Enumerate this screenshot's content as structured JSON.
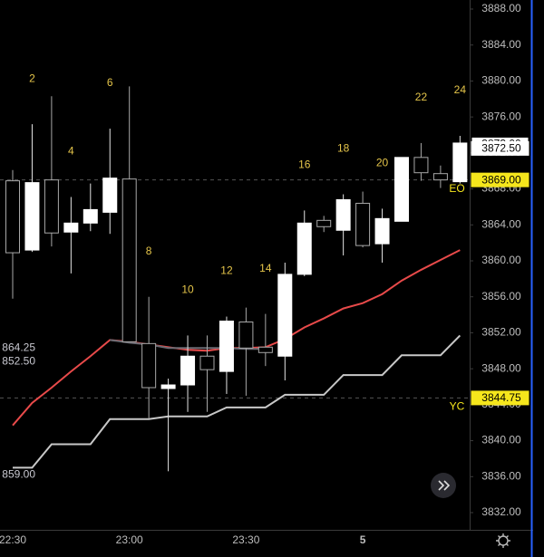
{
  "chart_data": {
    "type": "candlestick",
    "categories": [
      "22:30",
      null,
      null,
      null,
      null,
      null,
      "23:00",
      null,
      null,
      null,
      null,
      null,
      "23:30",
      null,
      null,
      null,
      null,
      null,
      "5",
      null,
      null,
      null,
      null,
      null
    ],
    "open": [
      3868.9,
      3861.2,
      3869.0,
      3863.2,
      3864.2,
      3865.4,
      3869.1,
      3850.8,
      3845.8,
      3846.2,
      3849.4,
      3847.7,
      3853.2,
      3850.4,
      3849.4,
      3858.5,
      3864.5,
      3863.4,
      3866.4,
      3861.9,
      3864.4,
      3871.5,
      3869.7,
      3868.8
    ],
    "high": [
      3870.1,
      3875.2,
      3878.3,
      3867.1,
      3868.6,
      3874.7,
      3879.4,
      3856.0,
      3846.9,
      3851.7,
      3851.7,
      3853.8,
      3854.8,
      3854.1,
      3859.8,
      3865.6,
      3865.0,
      3867.4,
      3867.7,
      3865.8,
      3871.5,
      3873.1,
      3870.6,
      3873.9
    ],
    "low": [
      3855.8,
      3861.0,
      3861.6,
      3858.6,
      3863.3,
      3863.0,
      3851.0,
      3842.5,
      3836.6,
      3843.2,
      3843.2,
      3845.2,
      3845.0,
      3848.3,
      3846.7,
      3858.3,
      3863.2,
      3860.6,
      3861.5,
      3859.8,
      3864.4,
      3868.9,
      3868.1,
      3868.6
    ],
    "close": [
      3860.9,
      3868.7,
      3863.1,
      3864.2,
      3865.7,
      3869.2,
      3851.0,
      3845.9,
      3846.2,
      3849.4,
      3847.9,
      3853.3,
      3850.3,
      3849.8,
      3858.5,
      3864.2,
      3863.8,
      3866.8,
      3861.7,
      3864.7,
      3871.5,
      3869.8,
      3869.0,
      3873.1
    ],
    "candle_labels": [
      null,
      2,
      null,
      4,
      null,
      6,
      null,
      8,
      null,
      10,
      null,
      12,
      null,
      14,
      null,
      16,
      null,
      18,
      null,
      20,
      null,
      22,
      null,
      24
    ],
    "series": [
      {
        "color": "#e84a4a",
        "values": [
          3841.7,
          3844.2,
          3845.9,
          3847.7,
          3849.4,
          3851.2,
          3851.0,
          3850.7,
          3850.4,
          3850.1,
          3850.0,
          3850.3,
          3850.3,
          3850.4,
          3851.3,
          3852.6,
          3853.6,
          3854.7,
          3855.3,
          3856.3,
          3857.8,
          3859.0,
          3860.1,
          3861.2
        ]
      },
      {
        "color": "#6b6b73",
        "values": [
          null,
          null,
          null,
          null,
          null,
          3851.2,
          3850.9,
          3850.7,
          3850.3,
          3850.3,
          3850.3,
          3850.3,
          3850.2,
          3850.2,
          null,
          null,
          null,
          null,
          null,
          null,
          null,
          null,
          null,
          null
        ]
      },
      {
        "color": "#c8c8c8",
        "values": [
          3837.0,
          3837.0,
          3839.6,
          3839.6,
          3839.6,
          3842.4,
          3842.4,
          3842.4,
          3842.7,
          3842.7,
          3842.7,
          3843.7,
          3843.7,
          3843.7,
          3845.1,
          3845.1,
          3845.1,
          3847.3,
          3847.3,
          3847.3,
          3849.5,
          3849.5,
          3849.5,
          3851.7
        ]
      }
    ],
    "ylim": [
      3832,
      3888
    ],
    "yticks": [
      {
        "value": 3888,
        "label": "3888.00"
      },
      {
        "value": 3884,
        "label": "3884.00"
      },
      {
        "value": 3880,
        "label": "3880.00"
      },
      {
        "value": 3876,
        "label": "3876.00"
      },
      {
        "value": 3872,
        "label": "3872.00"
      },
      {
        "value": 3868,
        "label": "3868.00"
      },
      {
        "value": 3864,
        "label": "3864.00"
      },
      {
        "value": 3860,
        "label": "3860.00"
      },
      {
        "value": 3856,
        "label": "3856.00"
      },
      {
        "value": 3852,
        "label": "3852.00"
      },
      {
        "value": 3848,
        "label": "3848.00"
      },
      {
        "value": 3844,
        "label": "3844.00"
      },
      {
        "value": 3840,
        "label": "3840.00"
      },
      {
        "value": 3836,
        "label": "3836.00"
      },
      {
        "value": 3832,
        "label": "3832.00"
      }
    ],
    "price_tags": [
      {
        "value": 3873.0,
        "label": "3873.00",
        "fill": "#ffffff",
        "stroke": "#000000"
      },
      {
        "value": 3872.5,
        "label": "3872.50",
        "fill": "#ffffff",
        "stroke": "#ffffff"
      },
      {
        "value": 3869.0,
        "label": "3869.00",
        "fill": "#f5e61c",
        "stroke": "#f5e61c",
        "line_label": "EO"
      },
      {
        "value": 3844.75,
        "label": "3844.75",
        "fill": "#f5e61c",
        "stroke": "#f5e61c",
        "line_label": "YC"
      }
    ],
    "side_labels": [
      {
        "value": 3850.3,
        "label": "864.25"
      },
      {
        "value": 3848.8,
        "label": "852.50"
      },
      {
        "value": 3836.2,
        "label": "859.00"
      }
    ]
  }
}
